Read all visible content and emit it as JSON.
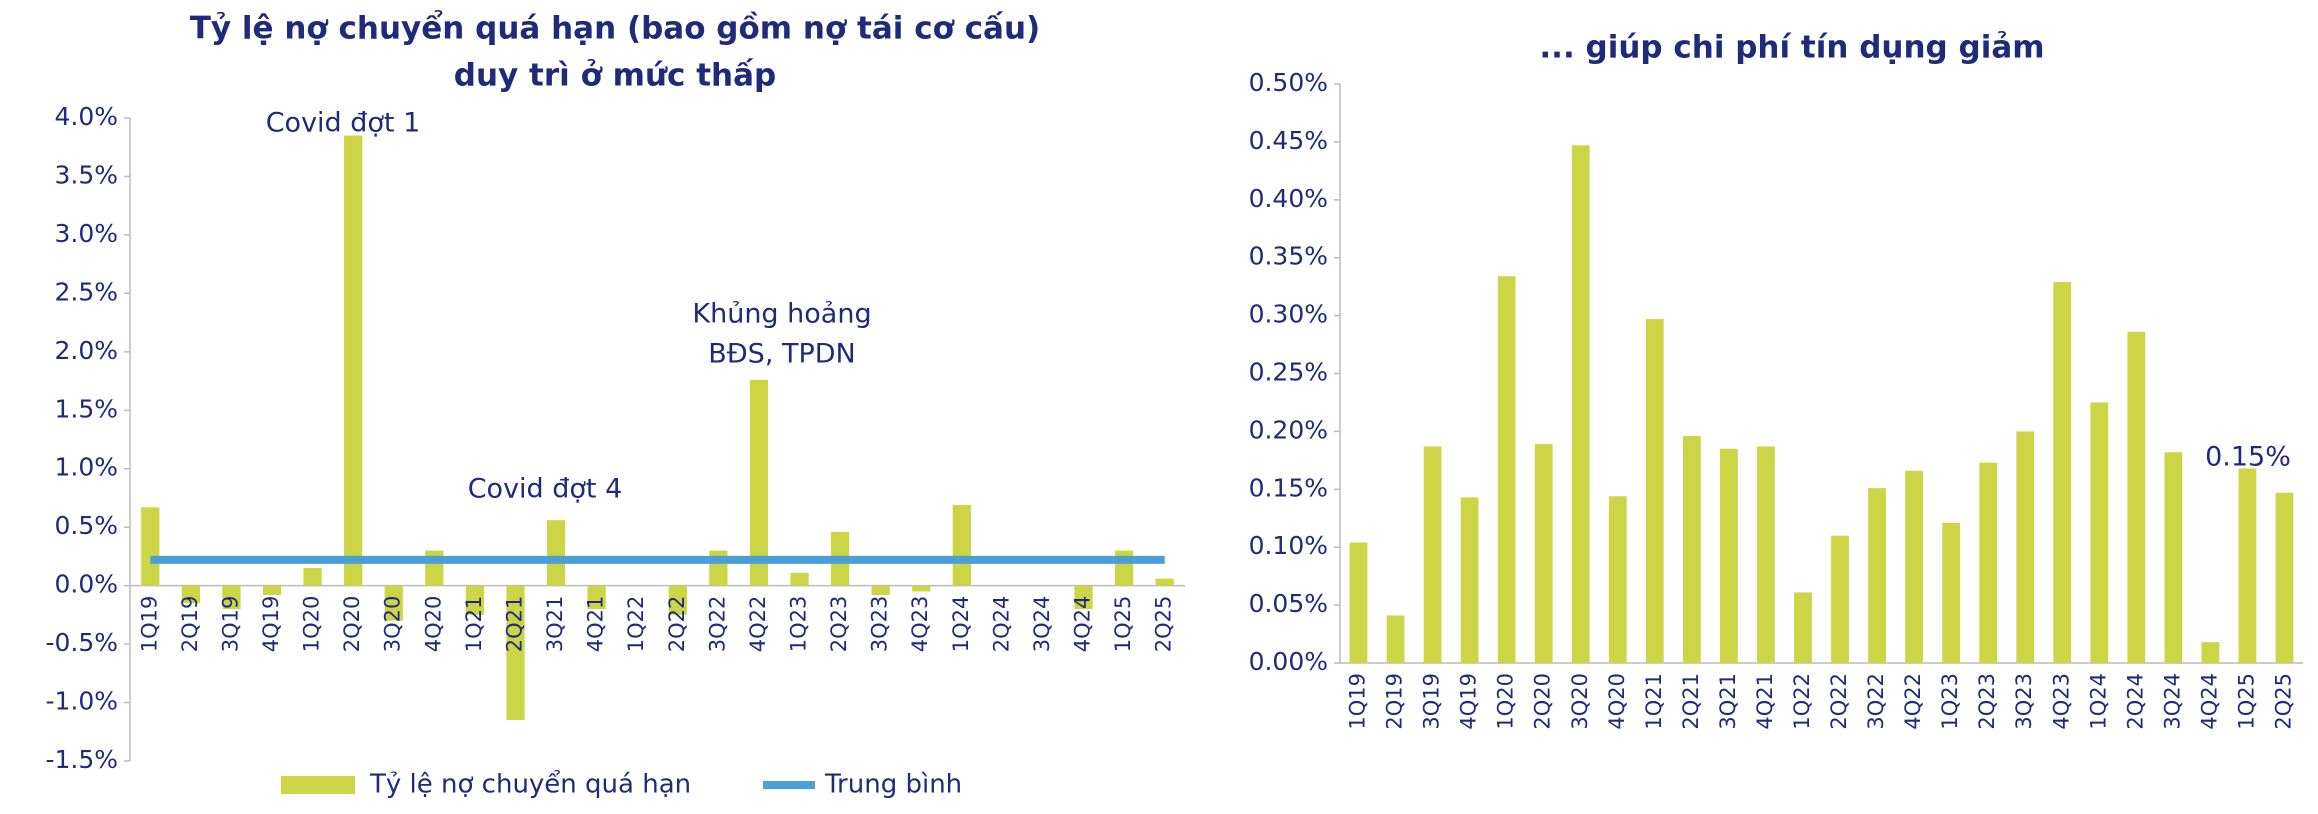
{
  "chart_data": [
    {
      "type": "bar",
      "title": [
        "Tỷ lệ nợ chuyển quá hạn (bao gồm nợ tái cơ cấu)",
        "duy trì ở mức thấp"
      ],
      "categories": [
        "1Q19",
        "2Q19",
        "3Q19",
        "4Q19",
        "1Q20",
        "2Q20",
        "3Q20",
        "4Q20",
        "1Q21",
        "2Q21",
        "3Q21",
        "4Q21",
        "1Q22",
        "2Q22",
        "3Q22",
        "4Q22",
        "1Q23",
        "2Q23",
        "3Q23",
        "4Q23",
        "1Q24",
        "2Q24",
        "3Q24",
        "4Q24",
        "1Q25",
        "2Q25"
      ],
      "series": [
        {
          "name": "Tỷ lệ nợ chuyển quá hạn",
          "type": "bar",
          "color": "#cbd545",
          "values": [
            0.67,
            -0.15,
            -0.2,
            -0.08,
            0.15,
            3.85,
            -0.3,
            0.3,
            -0.25,
            -1.15,
            0.56,
            -0.2,
            0,
            -0.25,
            0.3,
            1.76,
            0.11,
            0.46,
            -0.08,
            -0.05,
            0.69,
            0,
            0,
            -0.2,
            0.3,
            0.06
          ]
        },
        {
          "name": "Trung bình",
          "type": "line",
          "color": "#4a9fd6",
          "values": [
            0.22,
            0.22,
            0.22,
            0.22,
            0.22,
            0.22,
            0.22,
            0.22,
            0.22,
            0.22,
            0.22,
            0.22,
            0.22,
            0.22,
            0.22,
            0.22,
            0.22,
            0.22,
            0.22,
            0.22,
            0.22,
            0.22,
            0.22,
            0.22,
            0.22,
            0.22
          ]
        }
      ],
      "ylim": [
        -1.5,
        4.0
      ],
      "yticks": [
        {
          "value": 4.0,
          "label": "4.0%"
        },
        {
          "value": 3.5,
          "label": "3.5%"
        },
        {
          "value": 3.0,
          "label": "3.0%"
        },
        {
          "value": 2.5,
          "label": "2.5%"
        },
        {
          "value": 2.0,
          "label": "2.0%"
        },
        {
          "value": 1.5,
          "label": "1.5%"
        },
        {
          "value": 1.0,
          "label": "1.0%"
        },
        {
          "value": 0.5,
          "label": "0.5%"
        },
        {
          "value": 0,
          "label": "0.0%"
        },
        {
          "value": -0.5,
          "label": "-0.5%"
        },
        {
          "value": -1.0,
          "label": "-1.0%"
        },
        {
          "value": -1.5,
          "label": "-1.5%"
        }
      ],
      "annotations": [
        "Covid đợt 1",
        "Khủng hoảng",
        "BĐS, TPDN",
        "Covid đợt 4"
      ],
      "legend": "bottom"
    },
    {
      "type": "bar",
      "title": [
        "... giúp chi phí tín dụng giảm"
      ],
      "categories": [
        "1Q19",
        "2Q19",
        "3Q19",
        "4Q19",
        "1Q20",
        "2Q20",
        "3Q20",
        "4Q20",
        "1Q21",
        "2Q21",
        "3Q21",
        "4Q21",
        "1Q22",
        "2Q22",
        "3Q22",
        "4Q22",
        "1Q23",
        "2Q23",
        "3Q23",
        "4Q23",
        "1Q24",
        "2Q24",
        "3Q24",
        "4Q24",
        "1Q25",
        "2Q25"
      ],
      "series": [
        {
          "name": null,
          "type": "bar",
          "color": "#cbd545",
          "values": [
            0.104,
            0.041,
            0.187,
            0.143,
            0.334,
            0.189,
            0.447,
            0.144,
            0.297,
            0.196,
            0.185,
            0.187,
            0.061,
            0.11,
            0.151,
            0.166,
            0.121,
            0.173,
            0.2,
            0.329,
            0.225,
            0.286,
            0.182,
            0.018,
            0.168,
            0.147
          ]
        }
      ],
      "ylim": [
        0,
        0.5
      ],
      "yticks": [
        {
          "value": 0.5,
          "label": "0.50%"
        },
        {
          "value": 0.45,
          "label": "0.45%"
        },
        {
          "value": 0.4,
          "label": "0.40%"
        },
        {
          "value": 0.35,
          "label": "0.35%"
        },
        {
          "value": 0.3,
          "label": "0.30%"
        },
        {
          "value": 0.25,
          "label": "0.25%"
        },
        {
          "value": 0.2,
          "label": "0.20%"
        },
        {
          "value": 0.15,
          "label": "0.15%"
        },
        {
          "value": 0.1,
          "label": "0.10%"
        },
        {
          "value": 0.05,
          "label": "0.05%"
        },
        {
          "value": 0,
          "label": "0.00%"
        }
      ],
      "annotations": [
        "0.15%"
      ]
    }
  ]
}
